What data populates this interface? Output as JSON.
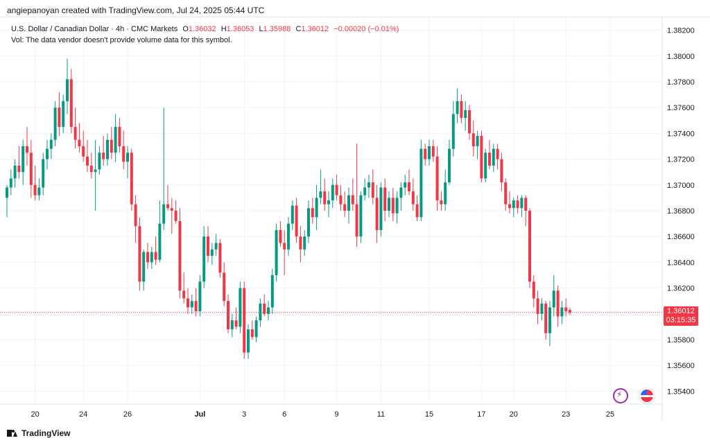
{
  "caption": "angiepanoyan created with TradingView.com, Jul 24, 2025 05:44 UTC",
  "legend": {
    "symbol": "U.S. Dollar / Canadian Dollar · 4h · CMC Markets",
    "o_label": "O",
    "o_value": "1.36032",
    "h_label": "H",
    "h_value": "1.36053",
    "l_label": "L",
    "l_value": "1.35988",
    "c_label": "C",
    "c_value": "1.36012",
    "change": "−0.00020 (−0.01%)",
    "vol_note": "Vol: The data vendor doesn't provide volume data for this symbol."
  },
  "price_badge": {
    "price": "1.36012",
    "countdown": "03:15:35"
  },
  "footer": {
    "brand": "TradingView"
  },
  "colors": {
    "up": "#089981",
    "down": "#f23645",
    "grid": "#f0f3fa",
    "text": "#131722"
  },
  "chart_data": {
    "type": "candlestick",
    "title": "U.S. Dollar / Canadian Dollar · 4h · CMC Markets",
    "ylim": [
      1.353,
      1.383
    ],
    "y_ticks": [
      "1.38200",
      "1.38000",
      "1.37800",
      "1.37600",
      "1.37400",
      "1.37200",
      "1.37000",
      "1.36800",
      "1.36600",
      "1.36400",
      "1.36200",
      "1.36000",
      "1.35800",
      "1.35600",
      "1.35400"
    ],
    "x_ticks": [
      {
        "label": "20",
        "i": 7
      },
      {
        "label": "24",
        "i": 19
      },
      {
        "label": "26",
        "i": 30
      },
      {
        "label": "Jul",
        "i": 48
      },
      {
        "label": "3",
        "i": 59
      },
      {
        "label": "6",
        "i": 69
      },
      {
        "label": "9",
        "i": 82
      },
      {
        "label": "11",
        "i": 93
      },
      {
        "label": "15",
        "i": 105
      },
      {
        "label": "17",
        "i": 118
      },
      {
        "label": "20",
        "i": 126
      },
      {
        "label": "23",
        "i": 139
      },
      {
        "label": "25",
        "i": 150
      }
    ],
    "last_price": 1.36012,
    "candles": [
      [
        1.369,
        1.37,
        1.3675,
        1.3698
      ],
      [
        1.3698,
        1.3712,
        1.3692,
        1.3705
      ],
      [
        1.3705,
        1.372,
        1.3698,
        1.3715
      ],
      [
        1.3715,
        1.373,
        1.3705,
        1.371
      ],
      [
        1.371,
        1.3735,
        1.37,
        1.373
      ],
      [
        1.373,
        1.3745,
        1.3715,
        1.3725
      ],
      [
        1.3725,
        1.3735,
        1.369,
        1.37
      ],
      [
        1.37,
        1.3715,
        1.3688,
        1.3692
      ],
      [
        1.3692,
        1.3705,
        1.3688,
        1.3698
      ],
      [
        1.3698,
        1.3725,
        1.3692,
        1.372
      ],
      [
        1.372,
        1.3735,
        1.3712,
        1.3728
      ],
      [
        1.3728,
        1.374,
        1.372,
        1.3735
      ],
      [
        1.3735,
        1.3765,
        1.373,
        1.376
      ],
      [
        1.376,
        1.3772,
        1.3738,
        1.3745
      ],
      [
        1.3745,
        1.377,
        1.374,
        1.3765
      ],
      [
        1.3765,
        1.3798,
        1.3755,
        1.3782
      ],
      [
        1.3782,
        1.379,
        1.374,
        1.3745
      ],
      [
        1.3745,
        1.376,
        1.3728,
        1.3735
      ],
      [
        1.3735,
        1.3748,
        1.3725,
        1.373
      ],
      [
        1.373,
        1.3742,
        1.3718,
        1.3722
      ],
      [
        1.3722,
        1.3735,
        1.371,
        1.3715
      ],
      [
        1.3715,
        1.3725,
        1.3705,
        1.371
      ],
      [
        1.371,
        1.3735,
        1.368,
        1.3712
      ],
      [
        1.3712,
        1.373,
        1.3708,
        1.3725
      ],
      [
        1.3725,
        1.3738,
        1.3715,
        1.372
      ],
      [
        1.372,
        1.374,
        1.3715,
        1.3735
      ],
      [
        1.3735,
        1.3745,
        1.372,
        1.3725
      ],
      [
        1.3725,
        1.3755,
        1.3718,
        1.3745
      ],
      [
        1.3745,
        1.3752,
        1.3725,
        1.373
      ],
      [
        1.373,
        1.3742,
        1.3712,
        1.3718
      ],
      [
        1.3718,
        1.373,
        1.3705,
        1.3725
      ],
      [
        1.3725,
        1.3728,
        1.368,
        1.3685
      ],
      [
        1.3685,
        1.3692,
        1.3655,
        1.3668
      ],
      [
        1.3668,
        1.3675,
        1.3618,
        1.3625
      ],
      [
        1.3625,
        1.365,
        1.3618,
        1.3648
      ],
      [
        1.3648,
        1.3655,
        1.3635,
        1.364
      ],
      [
        1.364,
        1.3652,
        1.3635,
        1.3648
      ],
      [
        1.3648,
        1.366,
        1.3638,
        1.3642
      ],
      [
        1.3642,
        1.3688,
        1.364,
        1.367
      ],
      [
        1.367,
        1.376,
        1.3665,
        1.3685
      ],
      [
        1.3685,
        1.37,
        1.368,
        1.3682
      ],
      [
        1.3682,
        1.369,
        1.3662,
        1.368
      ],
      [
        1.368,
        1.3688,
        1.367,
        1.3672
      ],
      [
        1.3672,
        1.3682,
        1.3612,
        1.3618
      ],
      [
        1.3618,
        1.3632,
        1.3608,
        1.3612
      ],
      [
        1.3612,
        1.362,
        1.36,
        1.3605
      ],
      [
        1.3605,
        1.3615,
        1.36,
        1.361
      ],
      [
        1.361,
        1.362,
        1.3598,
        1.3602
      ],
      [
        1.3602,
        1.363,
        1.3598,
        1.3625
      ],
      [
        1.3625,
        1.3668,
        1.362,
        1.366
      ],
      [
        1.366,
        1.3668,
        1.364,
        1.3645
      ],
      [
        1.3645,
        1.3655,
        1.3638,
        1.365
      ],
      [
        1.365,
        1.3662,
        1.3645,
        1.3655
      ],
      [
        1.3655,
        1.3658,
        1.3628,
        1.3632
      ],
      [
        1.3632,
        1.364,
        1.3606,
        1.361
      ],
      [
        1.361,
        1.3615,
        1.3585,
        1.3588
      ],
      [
        1.3588,
        1.36,
        1.3582,
        1.3595
      ],
      [
        1.3595,
        1.3605,
        1.3588,
        1.359
      ],
      [
        1.359,
        1.3625,
        1.3585,
        1.362
      ],
      [
        1.362,
        1.3625,
        1.3565,
        1.357
      ],
      [
        1.357,
        1.3592,
        1.3565,
        1.3588
      ],
      [
        1.3588,
        1.3595,
        1.358,
        1.3582
      ],
      [
        1.3582,
        1.3598,
        1.3578,
        1.3595
      ],
      [
        1.3595,
        1.3612,
        1.359,
        1.3608
      ],
      [
        1.3608,
        1.3615,
        1.3598,
        1.36
      ],
      [
        1.36,
        1.361,
        1.3595,
        1.3605
      ],
      [
        1.3605,
        1.3635,
        1.36,
        1.363
      ],
      [
        1.363,
        1.367,
        1.3625,
        1.3665
      ],
      [
        1.3665,
        1.3672,
        1.3652,
        1.3655
      ],
      [
        1.3655,
        1.3665,
        1.363,
        1.365
      ],
      [
        1.365,
        1.3675,
        1.3645,
        1.367
      ],
      [
        1.367,
        1.3688,
        1.3665,
        1.3684
      ],
      [
        1.3684,
        1.369,
        1.3655,
        1.366
      ],
      [
        1.366,
        1.3668,
        1.364,
        1.365
      ],
      [
        1.365,
        1.3665,
        1.3645,
        1.366
      ],
      [
        1.366,
        1.3688,
        1.3655,
        1.3682
      ],
      [
        1.3682,
        1.369,
        1.367,
        1.3675
      ],
      [
        1.3675,
        1.37,
        1.3665,
        1.369
      ],
      [
        1.369,
        1.3712,
        1.3685,
        1.3695
      ],
      [
        1.3695,
        1.3705,
        1.368,
        1.3685
      ],
      [
        1.3685,
        1.3695,
        1.3675,
        1.3688
      ],
      [
        1.3688,
        1.3705,
        1.3682,
        1.37
      ],
      [
        1.37,
        1.3708,
        1.3688,
        1.3692
      ],
      [
        1.3692,
        1.37,
        1.368,
        1.3685
      ],
      [
        1.3685,
        1.3695,
        1.3675,
        1.368
      ],
      [
        1.368,
        1.3698,
        1.367,
        1.3692
      ],
      [
        1.3692,
        1.3705,
        1.368,
        1.3685
      ],
      [
        1.3685,
        1.3732,
        1.3652,
        1.366
      ],
      [
        1.366,
        1.3695,
        1.3655,
        1.3692
      ],
      [
        1.3692,
        1.3705,
        1.3688,
        1.3698
      ],
      [
        1.3698,
        1.3708,
        1.369,
        1.3702
      ],
      [
        1.3702,
        1.3712,
        1.3685,
        1.369
      ],
      [
        1.369,
        1.37,
        1.3655,
        1.3665
      ],
      [
        1.3665,
        1.3702,
        1.366,
        1.3698
      ],
      [
        1.3698,
        1.3705,
        1.3672,
        1.368
      ],
      [
        1.368,
        1.3695,
        1.3675,
        1.369
      ],
      [
        1.369,
        1.3698,
        1.3672,
        1.3678
      ],
      [
        1.3678,
        1.3695,
        1.367,
        1.369
      ],
      [
        1.369,
        1.3702,
        1.368,
        1.3698
      ],
      [
        1.3698,
        1.3708,
        1.3692,
        1.3702
      ],
      [
        1.3702,
        1.3712,
        1.3692,
        1.3695
      ],
      [
        1.3695,
        1.3705,
        1.368,
        1.3685
      ],
      [
        1.3685,
        1.3692,
        1.3672,
        1.3675
      ],
      [
        1.3675,
        1.3735,
        1.3672,
        1.3728
      ],
      [
        1.3728,
        1.3732,
        1.3715,
        1.372
      ],
      [
        1.372,
        1.3735,
        1.3715,
        1.373
      ],
      [
        1.373,
        1.3735,
        1.3718,
        1.3722
      ],
      [
        1.3722,
        1.373,
        1.368,
        1.3688
      ],
      [
        1.3688,
        1.3695,
        1.368,
        1.3685
      ],
      [
        1.3685,
        1.3712,
        1.368,
        1.3702
      ],
      [
        1.3702,
        1.3735,
        1.37,
        1.3728
      ],
      [
        1.3728,
        1.3765,
        1.3722,
        1.3755
      ],
      [
        1.3755,
        1.3775,
        1.3748,
        1.3765
      ],
      [
        1.3765,
        1.377,
        1.3748,
        1.3752
      ],
      [
        1.3752,
        1.3765,
        1.3742,
        1.3758
      ],
      [
        1.3758,
        1.3762,
        1.3735,
        1.374
      ],
      [
        1.374,
        1.375,
        1.3722,
        1.373
      ],
      [
        1.373,
        1.3742,
        1.372,
        1.3738
      ],
      [
        1.3738,
        1.3742,
        1.3702,
        1.3705
      ],
      [
        1.3705,
        1.3728,
        1.3702,
        1.3725
      ],
      [
        1.3725,
        1.3735,
        1.3712,
        1.3715
      ],
      [
        1.3715,
        1.3732,
        1.371,
        1.3728
      ],
      [
        1.3728,
        1.3732,
        1.3712,
        1.372
      ],
      [
        1.372,
        1.3725,
        1.3695,
        1.3702
      ],
      [
        1.3702,
        1.3705,
        1.368,
        1.3685
      ],
      [
        1.3685,
        1.3695,
        1.3678,
        1.3682
      ],
      [
        1.3682,
        1.369,
        1.3675,
        1.3688
      ],
      [
        1.3688,
        1.3692,
        1.3678,
        1.3682
      ],
      [
        1.3682,
        1.3692,
        1.3675,
        1.369
      ],
      [
        1.369,
        1.3692,
        1.3668,
        1.368
      ],
      [
        1.368,
        1.3682,
        1.362,
        1.3625
      ],
      [
        1.3625,
        1.363,
        1.3605,
        1.3612
      ],
      [
        1.3612,
        1.3618,
        1.3592,
        1.36
      ],
      [
        1.36,
        1.3612,
        1.3595,
        1.3608
      ],
      [
        1.3608,
        1.361,
        1.358,
        1.3585
      ],
      [
        1.3585,
        1.361,
        1.3575,
        1.3605
      ],
      [
        1.3605,
        1.363,
        1.3598,
        1.3618
      ],
      [
        1.3618,
        1.3622,
        1.359,
        1.3598
      ],
      [
        1.3598,
        1.361,
        1.3592,
        1.3605
      ],
      [
        1.3605,
        1.3612,
        1.3598,
        1.3602
      ],
      [
        1.3603,
        1.3605,
        1.3599,
        1.3601
      ]
    ]
  }
}
